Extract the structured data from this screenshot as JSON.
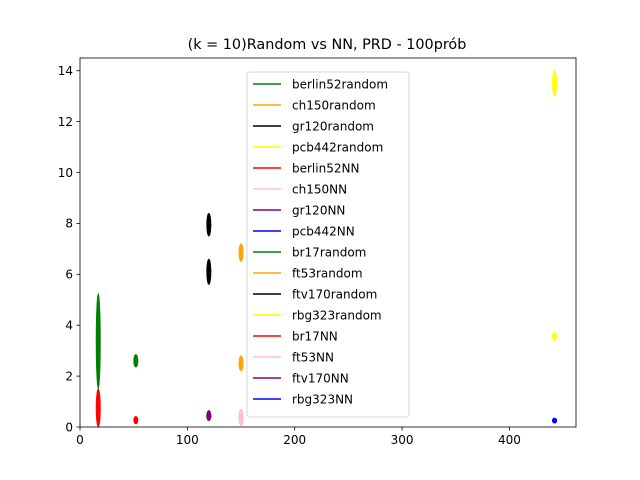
{
  "chart_data": {
    "type": "scatter",
    "title": "(k = 10)Random vs NN, PRD - 100prób",
    "xlabel": "",
    "ylabel": "",
    "xlim": [
      0,
      462
    ],
    "ylim": [
      0,
      14.5
    ],
    "xticks": [
      0,
      100,
      200,
      300,
      400
    ],
    "yticks": [
      0,
      2,
      4,
      6,
      8,
      10,
      12,
      14
    ],
    "grid": false,
    "legend_position": "center-top",
    "series": [
      {
        "name": "berlin52random",
        "color": "#008000",
        "x": 52,
        "y_min": 2.35,
        "y_max": 2.85
      },
      {
        "name": "ch150random",
        "color": "#FFA500",
        "x": 150,
        "y_min": 6.5,
        "y_max": 7.2
      },
      {
        "name": "gr120random",
        "color": "#000000",
        "x": 120,
        "y_min": 7.5,
        "y_max": 8.4
      },
      {
        "name": "pcb442random",
        "color": "#FFFF00",
        "x": 442,
        "y_min": 13.0,
        "y_max": 14.0
      },
      {
        "name": "berlin52NN",
        "color": "#FF0000",
        "x": 52,
        "y_min": 0.12,
        "y_max": 0.42
      },
      {
        "name": "ch150NN",
        "color": "#FFC0CB",
        "x": 150,
        "y_min": 0.15,
        "y_max": 0.7
      },
      {
        "name": "gr120NN",
        "color": "#800080",
        "x": 120,
        "y_min": 0.25,
        "y_max": 0.65
      },
      {
        "name": "pcb442NN",
        "color": "#0000FF",
        "x": 442,
        "y_min": 0.15,
        "y_max": 0.35
      },
      {
        "name": "br17random",
        "color": "#008000",
        "x": 17,
        "y_min": 1.5,
        "y_max": 5.25
      },
      {
        "name": "ft53random",
        "color": "#FFA500",
        "x": 150,
        "y_min": 2.2,
        "y_max": 2.8
      },
      {
        "name": "ftv170random",
        "color": "#000000",
        "x": 120,
        "y_min": 5.6,
        "y_max": 6.6
      },
      {
        "name": "rbg323random",
        "color": "#FFFF00",
        "x": 442,
        "y_min": 3.4,
        "y_max": 3.7
      },
      {
        "name": "br17NN",
        "color": "#FF0000",
        "x": 17,
        "y_min": 0.0,
        "y_max": 1.5
      },
      {
        "name": "ft53NN",
        "color": "#FFC0CB",
        "x": 150,
        "y_min": 0.05,
        "y_max": 0.6
      },
      {
        "name": "ftv170NN",
        "color": "#800080",
        "x": 120,
        "y_min": 0.25,
        "y_max": 0.6
      },
      {
        "name": "rbg323NN",
        "color": "#0000FF",
        "x": 442,
        "y_min": 0.15,
        "y_max": 0.35
      }
    ]
  }
}
